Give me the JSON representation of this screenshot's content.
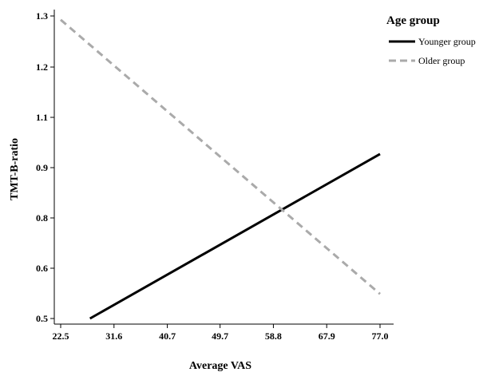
{
  "chart_data": {
    "type": "line",
    "xlabel": "Average VAS",
    "ylabel": "TMT-B-ratio",
    "x_ticks": [
      "22.5",
      "31.6",
      "40.7",
      "49.7",
      "58.8",
      "67.9",
      "77.0"
    ],
    "y_ticks": [
      "0.5",
      "0.6",
      "0.8",
      "0.9",
      "1.1",
      "1.2",
      "1.3"
    ],
    "xlim": [
      22.5,
      77.0
    ],
    "ylim": [
      0.5,
      1.3
    ],
    "grid": false,
    "legend": {
      "title": "Age group",
      "position": "outside-right-top"
    },
    "series": [
      {
        "name": "Younger group",
        "color": "#000000",
        "style": "solid",
        "x": [
          27.5,
          77.0
        ],
        "y": [
          0.5,
          0.935
        ]
      },
      {
        "name": "Older group",
        "color": "#aaaaaa",
        "style": "dashed",
        "x": [
          22.5,
          77.0
        ],
        "y": [
          1.29,
          0.565
        ]
      }
    ]
  }
}
